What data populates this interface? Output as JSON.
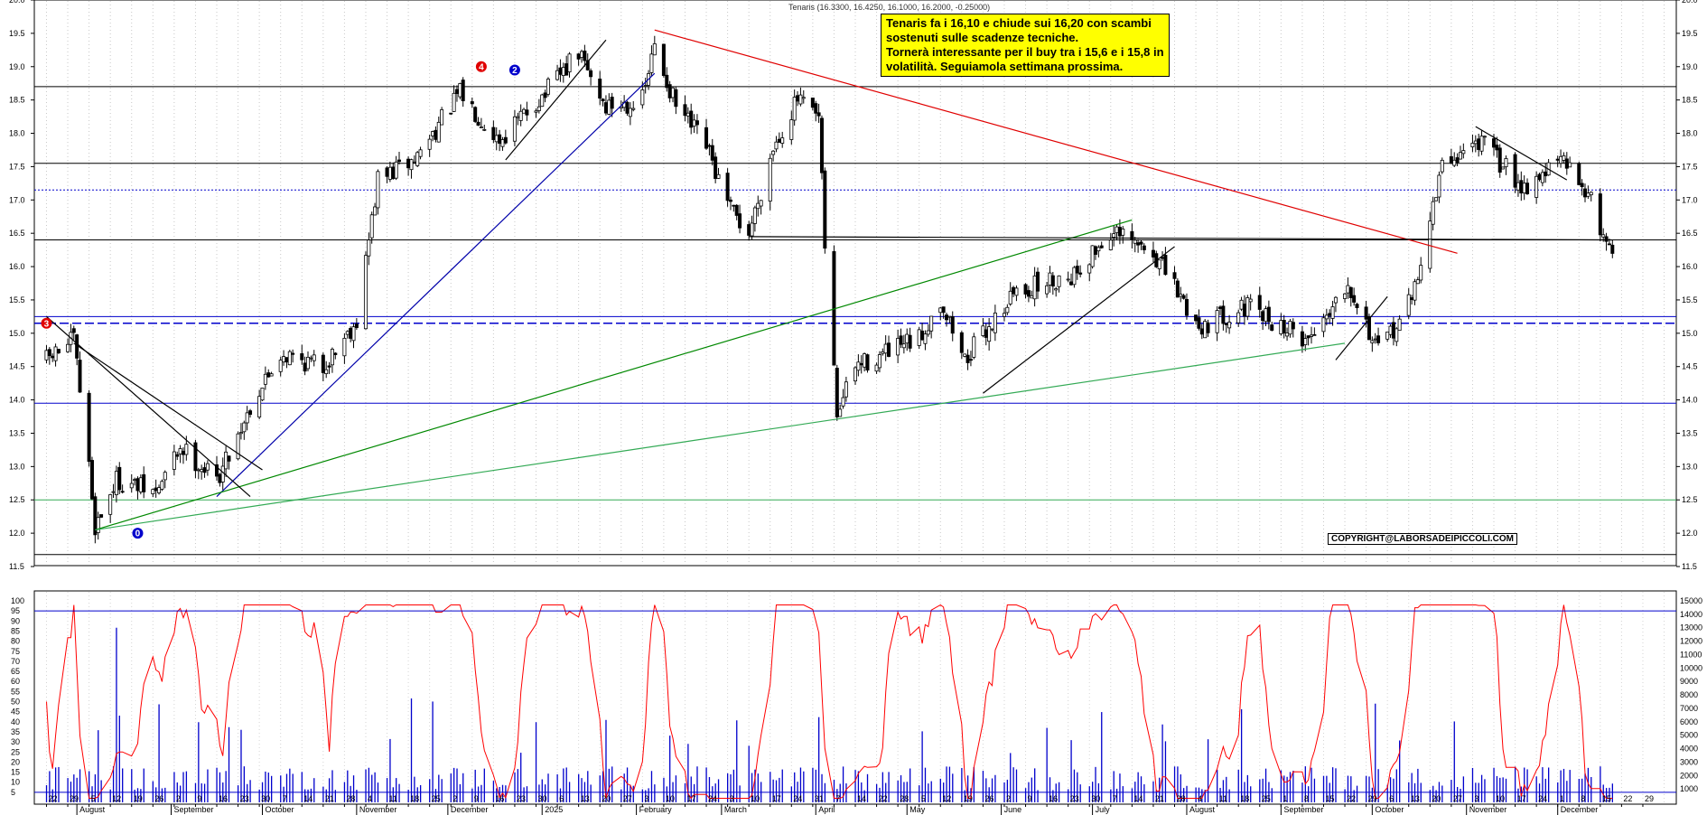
{
  "header": {
    "ticker_info": "Tenaris (16.3300, 16.4250, 16.1000, 16.2000, -0.25000)"
  },
  "note": {
    "lines": [
      "Tenaris fa i 16,10 e chiude sui 16,20 con scambi",
      "sostenuti sulle scadenze tecniche.",
      "Tornerà interessante per il buy tra i 15,6 e i 15,8 in",
      "volatilità.  Seguiamola settimana prossima."
    ]
  },
  "copyright": "COPYRIGHT@LABORSADEIPICCOLI.COM",
  "markers": [
    {
      "label": "0",
      "color": "#0000cc",
      "date": "2024-08-21",
      "price": 12.0
    },
    {
      "label": "3",
      "color": "#e00000",
      "date": "2024-07-22",
      "price": 15.15
    },
    {
      "label": "4",
      "color": "#e00000",
      "date": "2024-12-12",
      "price": 19.0
    },
    {
      "label": "2",
      "color": "#0000cc",
      "date": "2024-12-23",
      "price": 18.95
    }
  ],
  "chart_data": [
    {
      "type": "candlestick",
      "title": "Tenaris (16.3300, 16.4250, 16.1000, 16.2000, -0.25000)",
      "ylim": [
        11.5,
        20.0
      ],
      "y_ticks": [
        "11.5",
        "12.0",
        "12.5",
        "13.0",
        "13.5",
        "14.0",
        "14.5",
        "15.0",
        "15.5",
        "16.0",
        "16.5",
        "17.0",
        "17.5",
        "18.0",
        "18.5",
        "19.0",
        "19.5",
        "20.0"
      ],
      "x_day_ticks": [
        "22",
        "29",
        "5",
        "12",
        "19",
        "26",
        "2",
        "9",
        "16",
        "23",
        "30",
        "7",
        "14",
        "21",
        "28",
        "4",
        "11",
        "18",
        "25",
        "2",
        "9",
        "16",
        "23",
        "30",
        "6",
        "13",
        "20",
        "27",
        "3",
        "10",
        "17",
        "24",
        "3",
        "10",
        "17",
        "24",
        "31",
        "7",
        "14",
        "22",
        "28",
        "5",
        "12",
        "19",
        "26",
        "2",
        "9",
        "16",
        "23",
        "30",
        "7",
        "14",
        "21",
        "28",
        "4",
        "11",
        "18",
        "25",
        "1",
        "8",
        "15",
        "22",
        "29",
        "6",
        "13",
        "20",
        "27",
        "3",
        "10",
        "17",
        "24",
        "1",
        "8",
        "15",
        "22",
        "29"
      ],
      "x_month_ticks": [
        "August",
        "September",
        "October",
        "November",
        "December",
        "2025",
        "February",
        "March",
        "April",
        "May",
        "June",
        "July",
        "August",
        "September",
        "October",
        "November",
        "December"
      ],
      "grid": true,
      "last": {
        "open": 16.33,
        "high": 16.425,
        "low": 16.1,
        "close": 16.2,
        "change": -0.25
      },
      "path_keypoints": [
        {
          "date": "2024-07-22",
          "price": 14.6
        },
        {
          "date": "2024-07-31",
          "price": 14.9
        },
        {
          "date": "2024-08-05",
          "price": 13.0
        },
        {
          "date": "2024-08-07",
          "price": 12.1
        },
        {
          "date": "2024-08-14",
          "price": 12.8
        },
        {
          "date": "2024-08-27",
          "price": 12.6
        },
        {
          "date": "2024-09-04",
          "price": 13.3
        },
        {
          "date": "2024-09-16",
          "price": 12.8
        },
        {
          "date": "2024-09-27",
          "price": 13.9
        },
        {
          "date": "2024-10-07",
          "price": 14.7
        },
        {
          "date": "2024-10-21",
          "price": 14.5
        },
        {
          "date": "2024-11-01",
          "price": 15.2
        },
        {
          "date": "2024-11-08",
          "price": 17.3
        },
        {
          "date": "2024-11-20",
          "price": 17.6
        },
        {
          "date": "2024-12-05",
          "price": 18.6
        },
        {
          "date": "2024-12-18",
          "price": 17.9
        },
        {
          "date": "2025-01-02",
          "price": 18.6
        },
        {
          "date": "2025-01-13",
          "price": 19.2
        },
        {
          "date": "2025-01-22",
          "price": 18.4
        },
        {
          "date": "2025-02-03",
          "price": 18.5
        },
        {
          "date": "2025-02-07",
          "price": 19.3
        },
        {
          "date": "2025-02-14",
          "price": 18.4
        },
        {
          "date": "2025-02-24",
          "price": 17.8
        },
        {
          "date": "2025-03-03",
          "price": 16.9
        },
        {
          "date": "2025-03-10",
          "price": 16.5
        },
        {
          "date": "2025-03-18",
          "price": 17.8
        },
        {
          "date": "2025-03-26",
          "price": 18.5
        },
        {
          "date": "2025-04-02",
          "price": 18.2
        },
        {
          "date": "2025-04-04",
          "price": 16.3
        },
        {
          "date": "2025-04-08",
          "price": 13.8
        },
        {
          "date": "2025-04-14",
          "price": 14.5
        },
        {
          "date": "2025-05-05",
          "price": 14.9
        },
        {
          "date": "2025-05-12",
          "price": 15.5
        },
        {
          "date": "2025-05-20",
          "price": 14.6
        },
        {
          "date": "2025-06-05",
          "price": 15.6
        },
        {
          "date": "2025-06-25",
          "price": 15.9
        },
        {
          "date": "2025-07-07",
          "price": 16.5
        },
        {
          "date": "2025-07-21",
          "price": 16.2
        },
        {
          "date": "2025-08-05",
          "price": 15.1
        },
        {
          "date": "2025-08-20",
          "price": 15.4
        },
        {
          "date": "2025-09-10",
          "price": 14.9
        },
        {
          "date": "2025-09-23",
          "price": 15.8
        },
        {
          "date": "2025-10-03",
          "price": 14.7
        },
        {
          "date": "2025-10-14",
          "price": 15.5
        },
        {
          "date": "2025-10-24",
          "price": 17.5
        },
        {
          "date": "2025-11-05",
          "price": 17.9
        },
        {
          "date": "2025-11-20",
          "price": 17.2
        },
        {
          "date": "2025-12-02",
          "price": 17.6
        },
        {
          "date": "2025-12-10",
          "price": 17.2
        },
        {
          "date": "2025-12-15",
          "price": 16.6
        },
        {
          "date": "2025-12-19",
          "price": 16.2
        }
      ],
      "horizontal_lines": [
        {
          "price": 18.7,
          "color": "#000000",
          "style": "solid"
        },
        {
          "price": 17.55,
          "color": "#000000",
          "style": "solid"
        },
        {
          "price": 17.15,
          "color": "#0000cc",
          "style": "dotted"
        },
        {
          "price": 16.4,
          "color": "#000000",
          "style": "solid"
        },
        {
          "price": 15.25,
          "color": "#0000cc",
          "style": "solid"
        },
        {
          "price": 15.15,
          "color": "#0000cc",
          "style": "dashed"
        },
        {
          "price": 13.95,
          "color": "#0000cc",
          "style": "solid"
        },
        {
          "price": 12.5,
          "color": "#33aa55",
          "style": "solid"
        },
        {
          "price": 11.68,
          "color": "#000000",
          "style": "solid"
        }
      ],
      "trend_lines": [
        {
          "color": "#e00000",
          "points": [
            {
              "date": "2025-02-07",
              "price": 19.55
            },
            {
              "date": "2025-10-29",
              "price": 16.2
            }
          ]
        },
        {
          "color": "#0000aa",
          "points": [
            {
              "date": "2024-09-16",
              "price": 12.55
            },
            {
              "date": "2025-02-07",
              "price": 18.9
            }
          ]
        },
        {
          "color": "#008800",
          "points": [
            {
              "date": "2024-08-07",
              "price": 12.05
            },
            {
              "date": "2025-07-14",
              "price": 16.7
            }
          ]
        },
        {
          "color": "#33aa55",
          "points": [
            {
              "date": "2024-08-07",
              "price": 12.05
            },
            {
              "date": "2025-09-22",
              "price": 14.85
            }
          ]
        },
        {
          "color": "#000000",
          "points": [
            {
              "date": "2024-07-22",
              "price": 15.25
            },
            {
              "date": "2024-09-27",
              "price": 12.55
            }
          ]
        },
        {
          "color": "#000000",
          "points": [
            {
              "date": "2024-07-31",
              "price": 14.85
            },
            {
              "date": "2024-10-01",
              "price": 12.95
            }
          ]
        },
        {
          "color": "#000000",
          "points": [
            {
              "date": "2024-12-20",
              "price": 17.6
            },
            {
              "date": "2025-01-22",
              "price": 19.4
            }
          ]
        },
        {
          "color": "#000000",
          "points": [
            {
              "date": "2025-05-26",
              "price": 14.1
            },
            {
              "date": "2025-07-28",
              "price": 16.3
            }
          ]
        },
        {
          "color": "#000000",
          "points": [
            {
              "date": "2025-09-19",
              "price": 14.6
            },
            {
              "date": "2025-10-06",
              "price": 15.55
            }
          ]
        },
        {
          "color": "#000000",
          "points": [
            {
              "date": "2025-11-04",
              "price": 18.1
            },
            {
              "date": "2025-12-04",
              "price": 17.3
            }
          ]
        },
        {
          "color": "#000000",
          "points": [
            {
              "date": "2025-03-10",
              "price": 16.45
            },
            {
              "date": "2025-12-19",
              "price": 16.4
            }
          ]
        }
      ]
    },
    {
      "type": "line",
      "series": [
        {
          "color": "#ff0000"
        }
      ],
      "ylim": [
        0,
        100
      ],
      "y_ticks": [
        "5",
        "10",
        "15",
        "20",
        "25",
        "30",
        "35",
        "40",
        "45",
        "50",
        "55",
        "60",
        "65",
        "70",
        "75",
        "80",
        "85",
        "90",
        "95",
        "100"
      ],
      "reference_lines": [
        {
          "value": 95,
          "color": "#0000cc"
        },
        {
          "value": 5,
          "color": "#0000cc"
        }
      ]
    },
    {
      "type": "bar",
      "series": [
        {
          "color": "#0000cc"
        }
      ],
      "ylim": [
        0,
        15000
      ],
      "y_ticks": [
        "1000",
        "2000",
        "3000",
        "4000",
        "5000",
        "6000",
        "7000",
        "8000",
        "9000",
        "10000",
        "11000",
        "12000",
        "13000",
        "14000",
        "15000"
      ]
    }
  ]
}
